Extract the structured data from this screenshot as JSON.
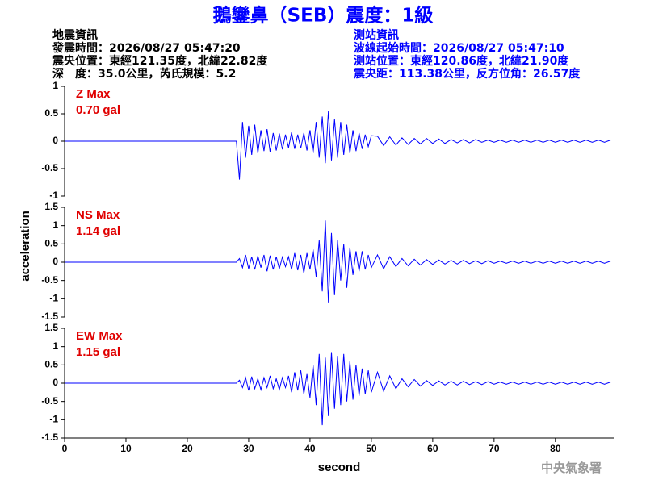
{
  "header": {
    "title": "鵝鑾鼻（SEB）震度：1級",
    "quake_info": [
      "地震資訊",
      "發震時間：2026/08/27 05:47:20",
      "震央位置：東經121.35度，北緯22.82度",
      "深　度：35.0公里，芮氏規模：5.2"
    ],
    "station_info": [
      "測站資訊",
      "波線起始時間：2026/08/27 05:47:10",
      "測站位置：東經120.86度，北緯21.90度",
      "震央距：113.38公里，反方位角：26.57度"
    ],
    "footer": "中央氣象署"
  },
  "chart_data": [
    {
      "type": "line",
      "annotations": [
        "Z Max",
        "0.70 gal"
      ],
      "color": "#0000ff",
      "xlim": [
        0,
        89.5
      ],
      "ylim": [
        -1,
        1
      ],
      "yticks": [
        -1,
        -0.5,
        0,
        0.5,
        1
      ],
      "x": [
        0,
        28,
        28.5,
        29,
        29.5,
        30,
        30.5,
        31,
        31.5,
        32,
        32.5,
        33,
        33.5,
        34,
        34.5,
        35,
        35.5,
        36,
        36.5,
        37,
        37.5,
        38,
        38.5,
        39,
        39.5,
        40,
        40.5,
        41,
        41.5,
        42,
        42.5,
        43,
        43.5,
        44,
        44.5,
        45,
        45.5,
        46,
        46.5,
        47,
        47.5,
        48,
        48.5,
        49,
        49.5,
        50,
        51,
        52,
        53,
        54,
        55,
        56,
        57,
        58,
        59,
        60,
        61,
        62,
        63,
        64,
        65,
        66,
        67,
        68,
        69,
        70,
        71,
        72,
        73,
        74,
        75,
        76,
        77,
        78,
        79,
        80,
        81,
        82,
        83,
        84,
        85,
        86,
        87,
        88,
        89
      ],
      "values": [
        0,
        0,
        -0.7,
        0.35,
        -0.3,
        0.28,
        -0.25,
        0.3,
        -0.22,
        0.2,
        -0.18,
        0.22,
        -0.2,
        0.15,
        -0.17,
        0.14,
        -0.15,
        0.12,
        -0.12,
        0.16,
        -0.14,
        0.12,
        -0.13,
        0.15,
        -0.17,
        0.2,
        -0.22,
        0.35,
        -0.3,
        0.45,
        -0.4,
        0.55,
        -0.35,
        0.4,
        -0.3,
        0.35,
        -0.25,
        0.3,
        -0.22,
        0.2,
        -0.18,
        0.15,
        -0.14,
        0.12,
        -0.1,
        0.1,
        0.09,
        -0.08,
        0.08,
        -0.07,
        0.06,
        -0.06,
        0.05,
        -0.05,
        0.05,
        -0.04,
        0.04,
        -0.04,
        0.03,
        -0.03,
        0.03,
        -0.03,
        0.03,
        -0.02,
        0.02,
        -0.02,
        0.02,
        -0.02,
        0.02,
        -0.02,
        0.02,
        -0.02,
        0.02,
        -0.02,
        0.02,
        -0.02,
        0.02,
        -0.02,
        0.02,
        -0.02,
        0.02,
        -0.02,
        0.02,
        -0.02,
        0.02
      ]
    },
    {
      "type": "line",
      "annotations": [
        "NS Max",
        "1.14 gal"
      ],
      "color": "#0000ff",
      "ylabel": "acceleration",
      "xlim": [
        0,
        89.5
      ],
      "ylim": [
        -1.5,
        1.5
      ],
      "yticks": [
        -1.5,
        -1,
        -0.5,
        0,
        0.5,
        1,
        1.5
      ],
      "x": [
        0,
        28,
        28.5,
        29,
        29.5,
        30,
        30.5,
        31,
        31.5,
        32,
        32.5,
        33,
        33.5,
        34,
        34.5,
        35,
        35.5,
        36,
        36.5,
        37,
        37.5,
        38,
        38.5,
        39,
        39.5,
        40,
        40.5,
        41,
        41.5,
        42,
        42.5,
        43,
        43.5,
        44,
        44.5,
        45,
        45.5,
        46,
        46.5,
        47,
        47.5,
        48,
        48.5,
        49,
        49.5,
        50,
        51,
        52,
        53,
        54,
        55,
        56,
        57,
        58,
        59,
        60,
        61,
        62,
        63,
        64,
        65,
        66,
        67,
        68,
        69,
        70,
        71,
        72,
        73,
        74,
        75,
        76,
        77,
        78,
        79,
        80,
        81,
        82,
        83,
        84,
        85,
        86,
        87,
        88,
        89
      ],
      "values": [
        0,
        0,
        0.1,
        -0.15,
        0.2,
        -0.18,
        0.15,
        -0.2,
        0.17,
        -0.15,
        0.2,
        -0.25,
        0.18,
        -0.2,
        0.15,
        -0.18,
        0.14,
        -0.12,
        0.15,
        -0.2,
        0.25,
        -0.22,
        0.2,
        -0.3,
        0.25,
        -0.2,
        0.35,
        -0.4,
        0.6,
        -0.8,
        1.14,
        -1.1,
        0.8,
        -0.9,
        0.6,
        -0.5,
        0.5,
        -0.7,
        0.4,
        -0.35,
        0.3,
        -0.25,
        0.3,
        -0.2,
        0.2,
        -0.15,
        0.2,
        -0.18,
        0.15,
        -0.12,
        0.1,
        -0.1,
        0.08,
        -0.08,
        0.07,
        -0.06,
        0.06,
        -0.05,
        0.05,
        -0.05,
        0.05,
        -0.04,
        0.04,
        -0.04,
        0.04,
        -0.03,
        0.03,
        -0.03,
        0.03,
        -0.03,
        0.03,
        -0.03,
        0.03,
        -0.03,
        0.03,
        -0.03,
        0.03,
        -0.03,
        0.03,
        -0.03,
        0.03,
        -0.03,
        0.03,
        -0.03,
        0.03
      ]
    },
    {
      "type": "line",
      "annotations": [
        "EW Max",
        "1.15 gal"
      ],
      "color": "#0000ff",
      "xlabel": "second",
      "xlim": [
        0,
        89.5
      ],
      "xticks": [
        0,
        10,
        20,
        30,
        40,
        50,
        60,
        70,
        80
      ],
      "ylim": [
        -1.5,
        1.5
      ],
      "yticks": [
        -1.5,
        -1,
        -0.5,
        0,
        0.5,
        1,
        1.5
      ],
      "x": [
        0,
        28,
        28.5,
        29,
        29.5,
        30,
        30.5,
        31,
        31.5,
        32,
        32.5,
        33,
        33.5,
        34,
        34.5,
        35,
        35.5,
        36,
        36.5,
        37,
        37.5,
        38,
        38.5,
        39,
        39.5,
        40,
        40.5,
        41,
        41.5,
        42,
        42.5,
        43,
        43.5,
        44,
        44.5,
        45,
        45.5,
        46,
        46.5,
        47,
        47.5,
        48,
        48.5,
        49,
        49.5,
        50,
        51,
        52,
        53,
        54,
        55,
        56,
        57,
        58,
        59,
        60,
        61,
        62,
        63,
        64,
        65,
        66,
        67,
        68,
        69,
        70,
        71,
        72,
        73,
        74,
        75,
        76,
        77,
        78,
        79,
        80,
        81,
        82,
        83,
        84,
        85,
        86,
        87,
        88,
        89
      ],
      "values": [
        0,
        0,
        0.08,
        -0.12,
        0.15,
        -0.2,
        0.18,
        -0.15,
        0.12,
        -0.18,
        0.15,
        -0.12,
        0.2,
        -0.15,
        0.12,
        -0.18,
        0.15,
        -0.12,
        0.2,
        -0.25,
        0.3,
        -0.2,
        0.35,
        -0.3,
        0.25,
        -0.4,
        0.5,
        -0.6,
        0.8,
        -1.15,
        0.7,
        -0.9,
        0.85,
        -0.7,
        0.75,
        -0.6,
        0.8,
        -0.5,
        0.6,
        -0.45,
        0.5,
        -0.35,
        0.4,
        -0.3,
        0.35,
        -0.25,
        0.3,
        -0.22,
        0.2,
        -0.15,
        0.12,
        -0.1,
        0.1,
        -0.08,
        0.07,
        -0.06,
        0.06,
        -0.05,
        0.05,
        -0.05,
        0.05,
        -0.04,
        0.04,
        -0.04,
        0.04,
        -0.03,
        0.03,
        -0.03,
        0.03,
        -0.03,
        0.03,
        -0.03,
        0.03,
        -0.03,
        0.03,
        -0.03,
        0.03,
        -0.03,
        0.03,
        -0.03,
        0.03,
        -0.03,
        0.03,
        -0.03,
        0.03
      ]
    }
  ]
}
